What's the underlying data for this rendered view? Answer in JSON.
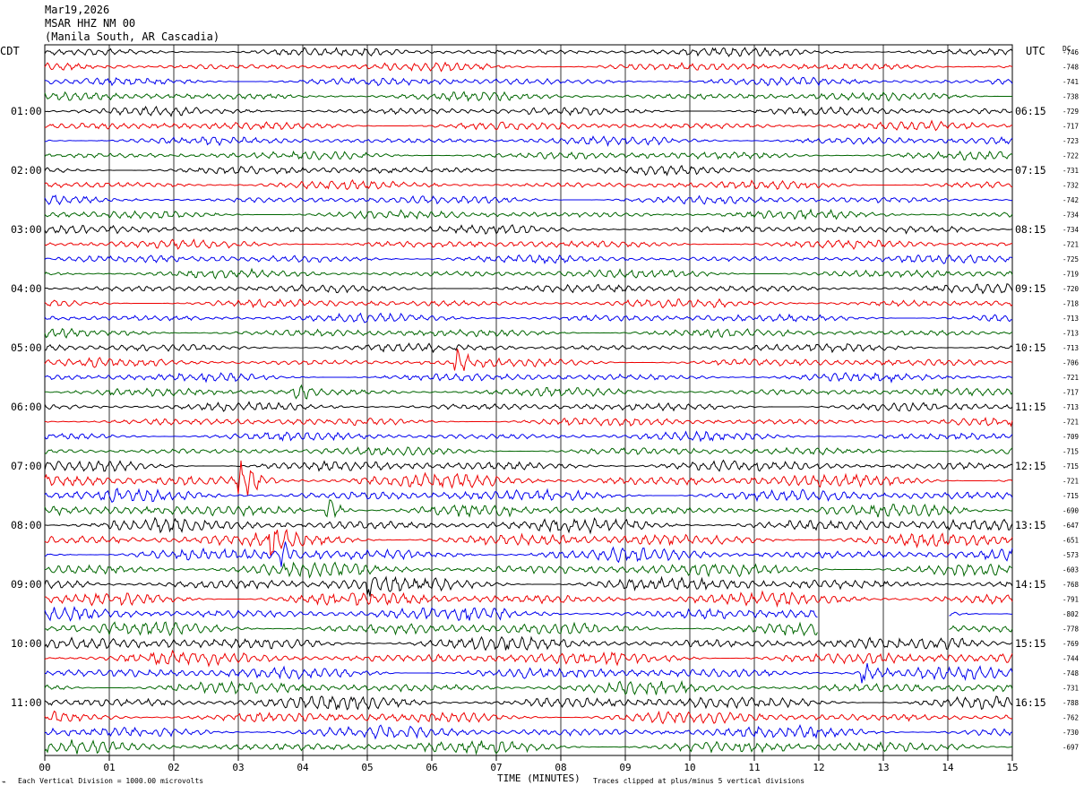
{
  "header": {
    "date": "Mar19,2026",
    "station": "MSAR HHZ NM 00",
    "location": "(Manila South, AR Cascadia)"
  },
  "left_zone": "CDT",
  "right_zone": "UTC",
  "dc_header": "DC",
  "footer": {
    "scale": "Each Vertical Division = 1000.00 microvolts",
    "x_title": "TIME (MINUTES)",
    "clip": "Traces clipped at plus/minus 5 vertical divisions"
  },
  "colors": {
    "cycle": [
      "#000000",
      "#ee0000",
      "#0000ee",
      "#006600"
    ]
  },
  "chart_data": {
    "type": "line",
    "title": "MSAR HHZ NM 00",
    "xlabel": "TIME (MINUTES)",
    "xlim": [
      0,
      15
    ],
    "x_ticks": [
      "00",
      "01",
      "02",
      "03",
      "04",
      "05",
      "06",
      "07",
      "08",
      "09",
      "10",
      "11",
      "12",
      "13",
      "14",
      "15"
    ],
    "rows_per_hour": 4,
    "left_time_labels": [
      "01:00",
      "02:00",
      "03:00",
      "04:00",
      "05:00",
      "06:00",
      "07:00",
      "08:00",
      "09:00",
      "10:00",
      "11:00"
    ],
    "right_time_labels": [
      "06:15",
      "07:15",
      "08:15",
      "09:15",
      "10:15",
      "11:15",
      "12:15",
      "13:15",
      "14:15",
      "15:15",
      "16:15"
    ],
    "dc_offsets": [
      -746,
      -748,
      -741,
      -738,
      -729,
      -717,
      -723,
      -722,
      -731,
      -732,
      -742,
      -734,
      -734,
      -721,
      -725,
      -719,
      -720,
      -718,
      -713,
      -713,
      -713,
      -706,
      -721,
      -717,
      -713,
      -721,
      -709,
      -715,
      -715,
      -721,
      -715,
      -690,
      -647,
      -651,
      -573,
      -603,
      -768,
      -791,
      -802,
      -778,
      -769,
      -744,
      -748,
      -731,
      -788,
      -762,
      -730,
      -697
    ],
    "trace_amplitude": [
      0.35,
      0.35,
      0.35,
      0.35,
      0.35,
      0.35,
      0.35,
      0.35,
      0.35,
      0.35,
      0.35,
      0.35,
      0.35,
      0.35,
      0.35,
      0.35,
      0.35,
      0.35,
      0.35,
      0.35,
      0.35,
      0.35,
      0.35,
      0.35,
      0.35,
      0.35,
      0.35,
      0.35,
      0.45,
      0.55,
      0.5,
      0.5,
      0.55,
      0.55,
      0.55,
      0.55,
      0.55,
      0.55,
      0.55,
      0.55,
      0.55,
      0.55,
      0.5,
      0.5,
      0.55,
      0.5,
      0.5,
      0.5
    ],
    "events": [
      {
        "row": 21,
        "minute": 6.4,
        "amplitude": 0.8
      },
      {
        "row": 23,
        "minute": 3.9,
        "amplitude": 0.9
      },
      {
        "row": 29,
        "minute": 3.05,
        "amplitude": 1.8
      },
      {
        "row": 31,
        "minute": 4.4,
        "amplitude": 1.0
      },
      {
        "row": 33,
        "minute": 3.5,
        "amplitude": 0.9
      },
      {
        "row": 34,
        "minute": 3.7,
        "amplitude": 0.8
      },
      {
        "row": 36,
        "minute": 5.05,
        "amplitude": 0.9
      },
      {
        "row": 42,
        "minute": 12.7,
        "amplitude": 0.9
      }
    ],
    "gaps": [
      {
        "row": 38,
        "start": 12.0,
        "end": 14.0
      },
      {
        "row": 39,
        "start": 12.0,
        "end": 14.0
      }
    ]
  }
}
